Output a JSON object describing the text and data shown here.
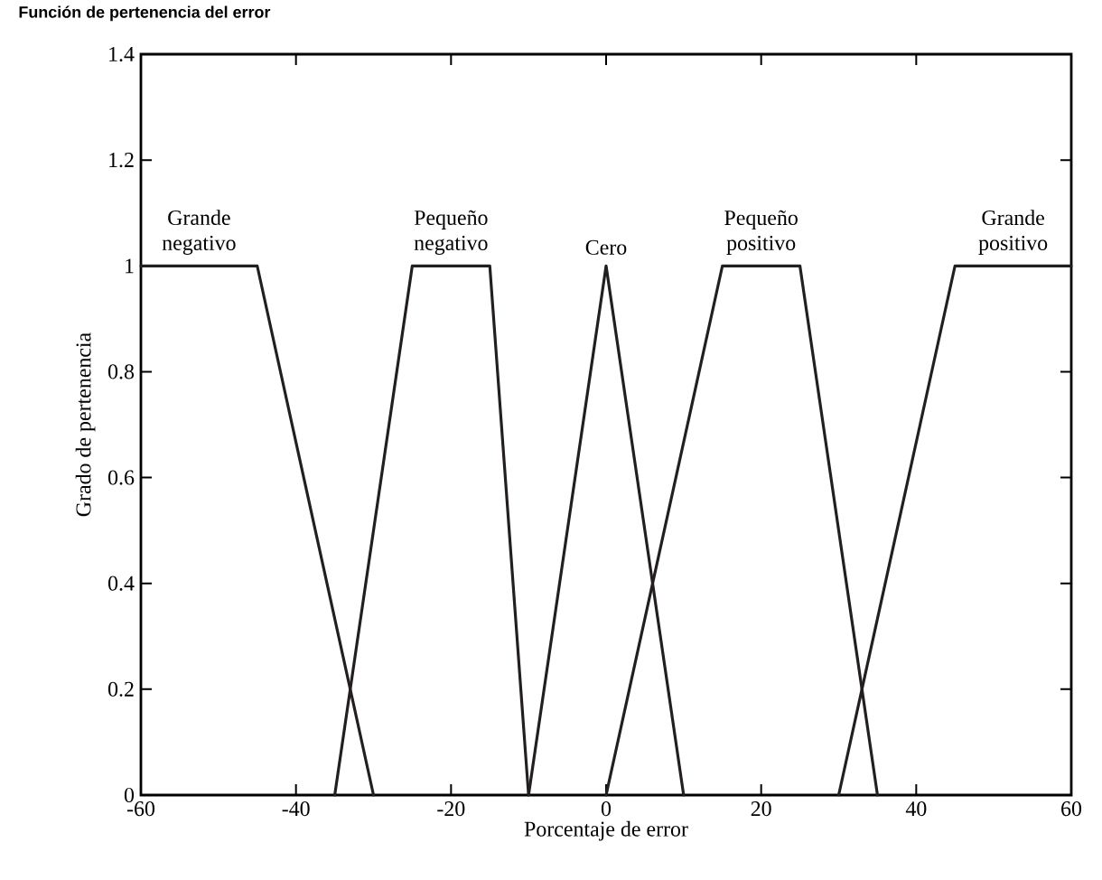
{
  "chart_data": {
    "type": "line",
    "title": "Función de pertenencia del error",
    "xlabel": "Porcentaje de error",
    "ylabel": "Grado de pertenencia",
    "xlim": [
      -60,
      60
    ],
    "xticks": [
      -60,
      -40,
      -20,
      0,
      20,
      40,
      60
    ],
    "ylim": [
      0,
      1.4
    ],
    "yticks": [
      0,
      0.2,
      0.4,
      0.6,
      0.8,
      1,
      1.2,
      1.4
    ],
    "grid": false,
    "legend": false,
    "marker": "none",
    "line_style": "solid",
    "series": [
      {
        "name": "Grande negativo",
        "color": "#231f20",
        "x": [
          -60,
          -45,
          -30
        ],
        "values": [
          1,
          1,
          0
        ]
      },
      {
        "name": "Pequeño negativo",
        "color": "#231f20",
        "x": [
          -35,
          -25,
          -15,
          -10
        ],
        "values": [
          0,
          1,
          1,
          0
        ]
      },
      {
        "name": "Cero",
        "color": "#231f20",
        "x": [
          -10,
          0,
          10
        ],
        "values": [
          0,
          1,
          0
        ]
      },
      {
        "name": "Pequeño positivo",
        "color": "#231f20",
        "x": [
          0,
          15,
          25,
          35
        ],
        "values": [
          0,
          1,
          1,
          0
        ]
      },
      {
        "name": "Grande positivo",
        "color": "#231f20",
        "x": [
          30,
          45,
          60
        ],
        "values": [
          0,
          1,
          1
        ]
      }
    ]
  }
}
